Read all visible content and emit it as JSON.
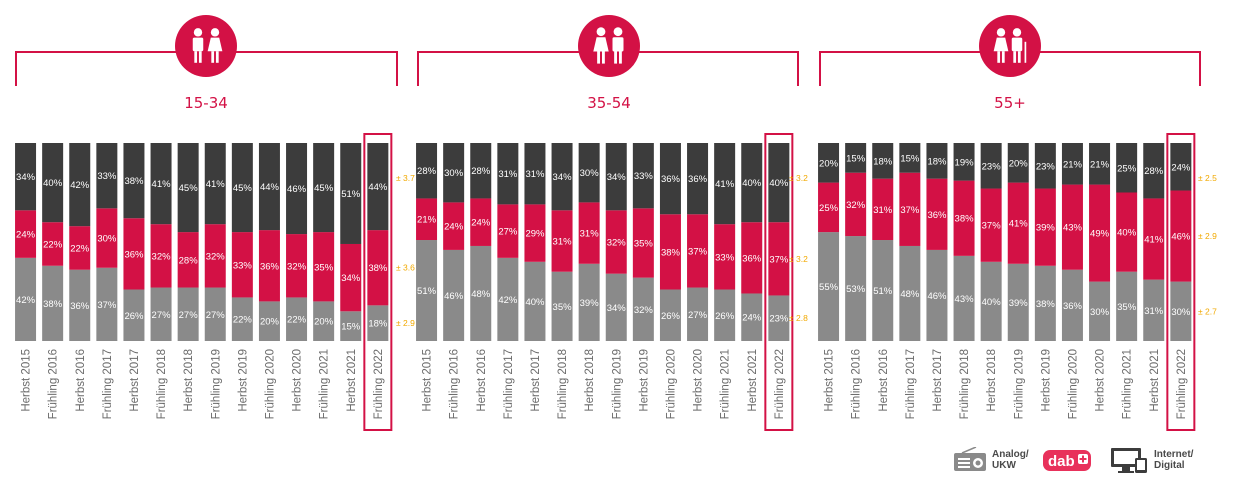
{
  "colors": {
    "accent": "#d31145",
    "analog": "#8a8a8a",
    "dab": "#d31145",
    "internet": "#3c3c3c",
    "moe": "#f2a900"
  },
  "legend": [
    {
      "key": "analog",
      "line1": "Analog/",
      "line2": "UKW",
      "icon": "radio-icon"
    },
    {
      "key": "dab",
      "line1": "",
      "line2": "",
      "icon": "dab-plus-logo"
    },
    {
      "key": "internet",
      "line1": "Internet/",
      "line2": "Digital",
      "icon": "computer-devices-icon"
    }
  ],
  "chart_data": [
    {
      "type": "bar",
      "stacked": true,
      "title": "15-34",
      "icon": "young-couple-icon",
      "highlight": "Frühling 2022",
      "categories": [
        "Herbst 2015",
        "Frühling 2016",
        "Herbst 2016",
        "Frühling 2017",
        "Herbst 2017",
        "Frühling 2018",
        "Herbst 2018",
        "Frühling 2019",
        "Herbst 2019",
        "Frühling 2020",
        "Herbst 2020",
        "Frühling 2021",
        "Herbst 2021",
        "Frühling 2022"
      ],
      "series": [
        {
          "key": "analog",
          "values": [
            42,
            38,
            36,
            37,
            26,
            27,
            27,
            27,
            22,
            20,
            22,
            20,
            15,
            18
          ]
        },
        {
          "key": "dab",
          "values": [
            24,
            22,
            22,
            30,
            36,
            32,
            28,
            32,
            33,
            36,
            32,
            35,
            34,
            38
          ]
        },
        {
          "key": "internet",
          "values": [
            34,
            40,
            42,
            33,
            38,
            41,
            45,
            41,
            45,
            44,
            46,
            45,
            51,
            44
          ]
        }
      ],
      "margin_of_error": {
        "analog": "± 2.9",
        "dab": "± 3.6",
        "internet": "± 3.7"
      }
    },
    {
      "type": "bar",
      "stacked": true,
      "title": "35-54",
      "icon": "adult-couple-icon",
      "highlight": "Frühling 2022",
      "categories": [
        "Herbst 2015",
        "Frühling 2016",
        "Herbst 2016",
        "Frühling 2017",
        "Herbst 2017",
        "Frühling 2018",
        "Herbst 2018",
        "Frühling 2019",
        "Herbst 2019",
        "Frühling 2020",
        "Herbst 2020",
        "Frühling 2021",
        "Herbst 2021",
        "Frühling 2022"
      ],
      "series": [
        {
          "key": "analog",
          "values": [
            51,
            46,
            48,
            42,
            40,
            35,
            39,
            34,
            32,
            26,
            27,
            26,
            24,
            23
          ]
        },
        {
          "key": "dab",
          "values": [
            21,
            24,
            24,
            27,
            29,
            31,
            31,
            32,
            35,
            38,
            37,
            33,
            36,
            37
          ]
        },
        {
          "key": "internet",
          "values": [
            28,
            30,
            28,
            31,
            31,
            34,
            30,
            34,
            33,
            36,
            36,
            41,
            40,
            40
          ]
        }
      ],
      "margin_of_error": {
        "analog": "± 2.8",
        "dab": "± 3.2",
        "internet": "± 3.2"
      }
    },
    {
      "type": "bar",
      "stacked": true,
      "title": "55+",
      "icon": "senior-couple-icon",
      "highlight": "Frühling 2022",
      "categories": [
        "Herbst 2015",
        "Frühling 2016",
        "Herbst 2016",
        "Frühling 2017",
        "Herbst 2017",
        "Frühling 2018",
        "Herbst 2018",
        "Frühling 2019",
        "Herbst 2019",
        "Frühling 2020",
        "Herbst 2020",
        "Frühling 2021",
        "Herbst 2021",
        "Frühling 2022"
      ],
      "series": [
        {
          "key": "analog",
          "values": [
            55,
            53,
            51,
            48,
            46,
            43,
            40,
            39,
            38,
            36,
            30,
            35,
            31,
            30
          ]
        },
        {
          "key": "dab",
          "values": [
            25,
            32,
            31,
            37,
            36,
            38,
            37,
            41,
            39,
            43,
            49,
            40,
            41,
            46
          ]
        },
        {
          "key": "internet",
          "values": [
            20,
            15,
            18,
            15,
            18,
            19,
            23,
            20,
            23,
            21,
            21,
            25,
            28,
            24
          ]
        }
      ],
      "margin_of_error": {
        "analog": "± 2.7",
        "dab": "± 2.9",
        "internet": "± 2.5"
      }
    }
  ]
}
